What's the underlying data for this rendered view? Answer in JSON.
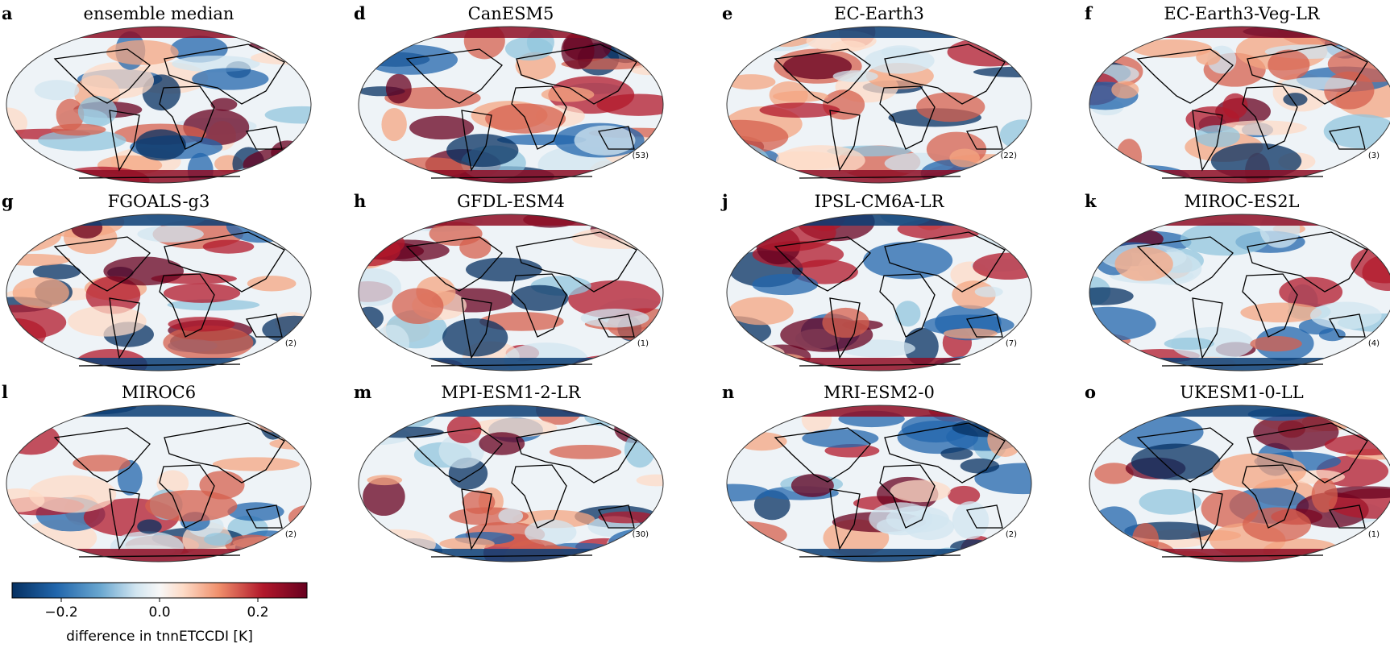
{
  "panels": [
    {
      "letter": "a",
      "title": "ensemble median"
    },
    {
      "letter": "d",
      "title": "CanESM5",
      "count": "(53)"
    },
    {
      "letter": "e",
      "title": "EC-Earth3",
      "count": "(22)"
    },
    {
      "letter": "f",
      "title": "EC-Earth3-Veg-LR",
      "count": "(3)"
    },
    {
      "letter": "g",
      "title": "FGOALS-g3",
      "count": "(2)"
    },
    {
      "letter": "h",
      "title": "GFDL-ESM4",
      "count": "(1)"
    },
    {
      "letter": "j",
      "title": "IPSL-CM6A-LR",
      "count": "(7)"
    },
    {
      "letter": "k",
      "title": "MIROC-ES2L",
      "count": "(4)"
    },
    {
      "letter": "l",
      "title": "MIROC6",
      "count": "(2)"
    },
    {
      "letter": "m",
      "title": "MPI-ESM1-2-LR",
      "count": "(30)"
    },
    {
      "letter": "n",
      "title": "MRI-ESM2-0",
      "count": "(2)"
    },
    {
      "letter": "o",
      "title": "UKESM1-0-LL",
      "count": "(1)"
    }
  ],
  "colorbar": {
    "label": "difference in tnnETCCDI [K]",
    "lim": [
      -0.3,
      0.3
    ],
    "ticks": [
      {
        "value": -0.2,
        "label": "−0.2"
      },
      {
        "value": 0,
        "label": "0.0"
      },
      {
        "value": 0.2,
        "label": "0.2"
      }
    ]
  }
}
